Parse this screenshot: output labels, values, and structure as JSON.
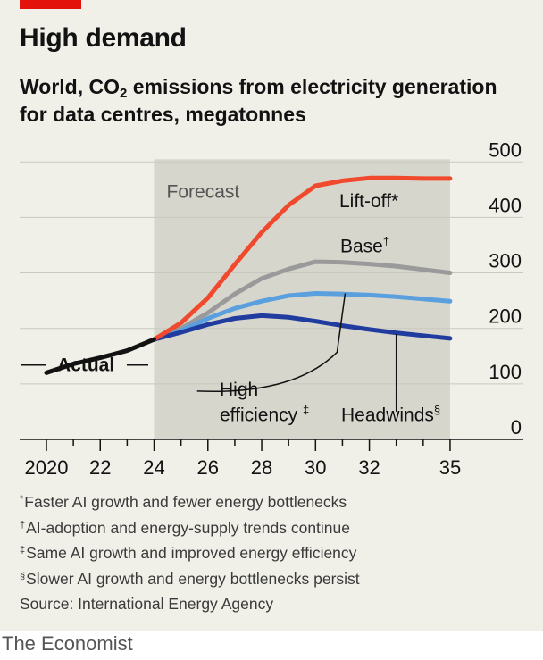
{
  "header": {
    "title": "High demand",
    "subtitle_line1_pre": "World, CO",
    "subtitle_line1_sub": "2",
    "subtitle_line1_post": " emissions from electricity generation",
    "subtitle_line2": "for data centres, megatonnes"
  },
  "colors": {
    "tag": "#e3120b",
    "actual": "#121212",
    "liftoff": "#f0492d",
    "base": "#9a9a9a",
    "high_efficiency": "#5a9fde",
    "headwinds": "#1f3c9e",
    "forecast_shade": "#d7d6cd",
    "grid": "#c9c8c0"
  },
  "chart_data": {
    "type": "line",
    "xlim": [
      2019.5,
      2035.8
    ],
    "ylim": [
      0,
      500
    ],
    "y_ticks": [
      0,
      100,
      200,
      300,
      400,
      500
    ],
    "y_tick_labels": [
      "0",
      "100",
      "200",
      "300",
      "400",
      "500"
    ],
    "x_tick_labels": [
      {
        "x": 2020,
        "label": "2020"
      },
      {
        "x": 2022,
        "label": "22"
      },
      {
        "x": 2024,
        "label": "24"
      },
      {
        "x": 2026,
        "label": "26"
      },
      {
        "x": 2028,
        "label": "28"
      },
      {
        "x": 2030,
        "label": "30"
      },
      {
        "x": 2032,
        "label": "32"
      },
      {
        "x": 2035,
        "label": "35"
      }
    ],
    "minor_ticks": [
      2020,
      2021,
      2022,
      2023,
      2024,
      2025,
      2026,
      2027,
      2028,
      2029,
      2030,
      2031,
      2032,
      2033,
      2034,
      2035
    ],
    "forecast_region": {
      "from": 2024,
      "to": 2035,
      "label": "Forecast"
    },
    "series": [
      {
        "key": "actual",
        "name": "Actual",
        "x": [
          2020,
          2021,
          2022,
          2023,
          2024
        ],
        "y": [
          120,
          136,
          147,
          160,
          180
        ]
      },
      {
        "key": "liftoff",
        "name": "Lift-off*",
        "x": [
          2024,
          2025,
          2026,
          2027,
          2028,
          2029,
          2030,
          2031,
          2032,
          2033,
          2034,
          2035
        ],
        "y": [
          180,
          210,
          255,
          315,
          373,
          422,
          457,
          466,
          471,
          471,
          470,
          470
        ]
      },
      {
        "key": "base",
        "name": "Base",
        "name_mark": "†",
        "x": [
          2024,
          2025,
          2026,
          2027,
          2028,
          2029,
          2030,
          2031,
          2032,
          2033,
          2034,
          2035
        ],
        "y": [
          180,
          200,
          228,
          262,
          290,
          307,
          320,
          319,
          316,
          312,
          306,
          300
        ]
      },
      {
        "key": "high_efficiency",
        "name": "High efficiency",
        "name_line1": "High",
        "name_line2": "efficiency",
        "name_mark": "‡",
        "x": [
          2024,
          2025,
          2026,
          2027,
          2028,
          2029,
          2030,
          2031,
          2032,
          2033,
          2034,
          2035
        ],
        "y": [
          180,
          196,
          218,
          236,
          249,
          259,
          263,
          262,
          260,
          257,
          253,
          249
        ]
      },
      {
        "key": "headwinds",
        "name": "Headwinds",
        "name_mark": "§",
        "x": [
          2024,
          2025,
          2026,
          2027,
          2028,
          2029,
          2030,
          2031,
          2032,
          2033,
          2034,
          2035
        ],
        "y": [
          180,
          193,
          207,
          218,
          223,
          220,
          213,
          205,
          198,
          192,
          187,
          182
        ]
      }
    ]
  },
  "footnotes": [
    {
      "mark": "*",
      "text": "Faster AI growth and fewer energy bottlenecks"
    },
    {
      "mark": "†",
      "text": "AI-adoption and energy-supply trends continue"
    },
    {
      "mark": "‡",
      "text": "Same AI growth and improved energy efficiency"
    },
    {
      "mark": "§",
      "text": "Slower AI growth and energy bottlenecks persist"
    }
  ],
  "source": "Source: International Energy Agency",
  "brand": "The Economist"
}
